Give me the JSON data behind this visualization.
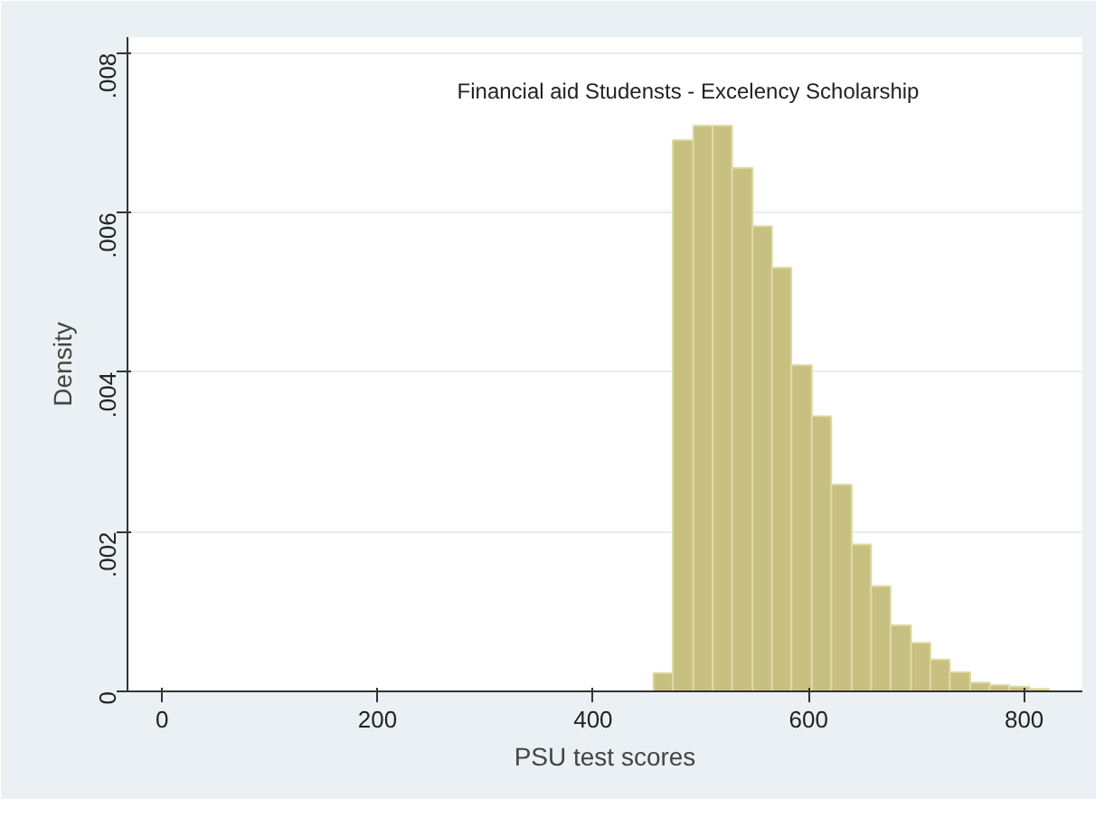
{
  "chart_data": {
    "type": "histogram",
    "title": "Financial aid Studensts - Excelency Scholarship",
    "xlabel": "PSU test scores",
    "ylabel": "Density",
    "color": "#c8c080",
    "bins": [
      456,
      474,
      493,
      511,
      529,
      548,
      566,
      584,
      603,
      621,
      640,
      658,
      676,
      695,
      713,
      731,
      750,
      768,
      786,
      805,
      823
    ],
    "values": [
      0.00023,
      0.00691,
      0.00709,
      0.00709,
      0.00656,
      0.00583,
      0.00531,
      0.00409,
      0.00345,
      0.00259,
      0.00184,
      0.00132,
      0.00083,
      0.00061,
      0.0004,
      0.00024,
      0.00011,
      8e-05,
      6e-05,
      3e-05
    ],
    "xlim": [
      -32,
      854
    ],
    "ylim": [
      0,
      0.0082
    ],
    "xticks": [
      0,
      200,
      400,
      600,
      800
    ],
    "yticks": [
      {
        "value": 0,
        "label": "0"
      },
      {
        "value": 0.002,
        "label": ".002"
      },
      {
        "value": 0.004,
        "label": ".004"
      },
      {
        "value": 0.006,
        "label": ".006"
      },
      {
        "value": 0.008,
        "label": ".008"
      }
    ],
    "grid": "y"
  }
}
